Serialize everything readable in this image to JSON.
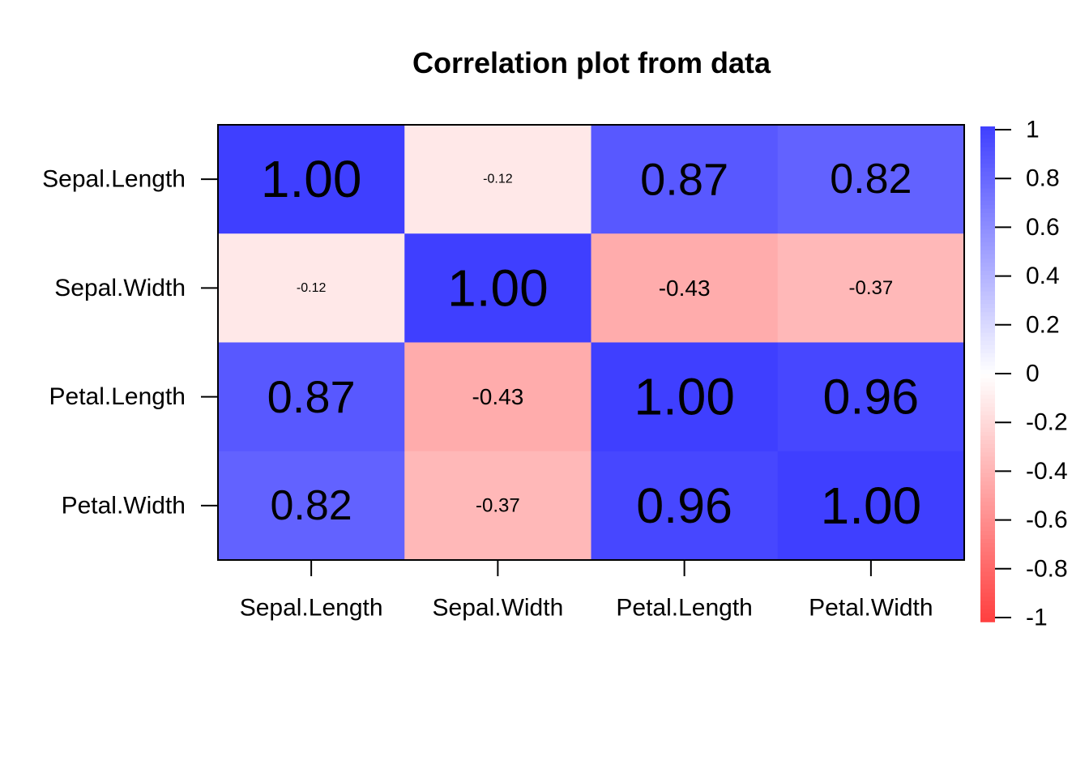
{
  "chart_data": {
    "type": "heatmap",
    "title": "Correlation plot from data",
    "rows": [
      "Sepal.Length",
      "Sepal.Width",
      "Petal.Length",
      "Petal.Width"
    ],
    "columns": [
      "Sepal.Length",
      "Sepal.Width",
      "Petal.Length",
      "Petal.Width"
    ],
    "values": [
      [
        1.0,
        -0.12,
        0.87,
        0.82
      ],
      [
        -0.12,
        1.0,
        -0.43,
        -0.37
      ],
      [
        0.87,
        -0.43,
        1.0,
        0.96
      ],
      [
        0.82,
        -0.37,
        0.96,
        1.0
      ]
    ],
    "labels": [
      [
        "1.00",
        "-0.12",
        "0.87",
        "0.82"
      ],
      [
        "-0.12",
        "1.00",
        "-0.43",
        "-0.37"
      ],
      [
        "0.87",
        "-0.43",
        "1.00",
        "0.96"
      ],
      [
        "0.82",
        "-0.37",
        "0.96",
        "1.00"
      ]
    ],
    "colorbar": {
      "range": [
        -1,
        1
      ],
      "ticks": [
        "1",
        "0.8",
        "0.6",
        "0.4",
        "0.2",
        "0",
        "-0.2",
        "-0.4",
        "-0.6",
        "-0.8",
        "-1"
      ],
      "tick_values": [
        1,
        0.8,
        0.6,
        0.4,
        0.2,
        0,
        -0.2,
        -0.4,
        -0.6,
        -0.8,
        -1
      ],
      "color_low": "#ff3f3f",
      "color_mid": "#ffffff",
      "color_high": "#3f3fff"
    },
    "xlabel": "",
    "ylabel": ""
  }
}
